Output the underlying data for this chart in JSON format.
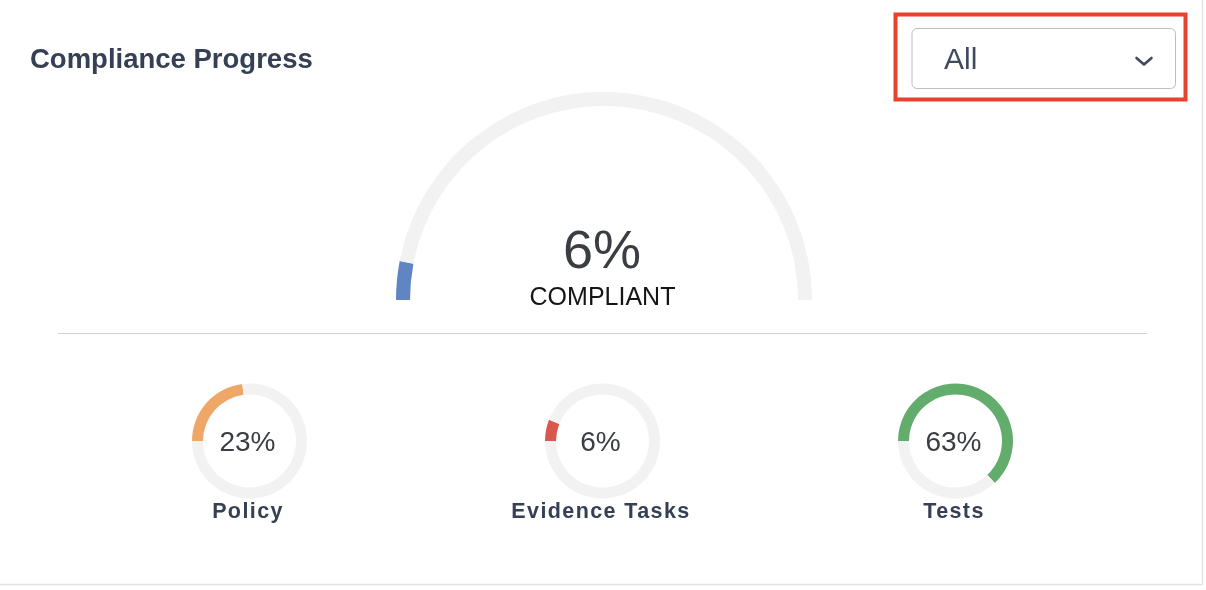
{
  "chart_data": [
    {
      "type": "other",
      "title": "Compliance Progress",
      "annotations": [
        "All"
      ]
    },
    {
      "type": "donut",
      "title": "COMPLIANT",
      "categories": [
        null,
        null
      ],
      "values": [
        6,
        94
      ],
      "colors": [
        "#5f86c2",
        "#f2f2f2"
      ],
      "annotations": [
        "6%"
      ]
    },
    {
      "type": "donut",
      "title": "Policy",
      "categories": [
        null,
        null
      ],
      "values": [
        23,
        77
      ],
      "colors": [
        "#eea766",
        "#f2f2f2"
      ],
      "value_labels": [
        "23%",
        null
      ]
    },
    {
      "type": "donut",
      "title": "Evidence Tasks",
      "categories": [
        null,
        null
      ],
      "values": [
        6,
        94
      ],
      "colors": [
        "#d9574f",
        "#f2f2f2"
      ],
      "value_labels": [
        "6%",
        null
      ]
    },
    {
      "type": "donut",
      "title": "Tests",
      "categories": [
        null,
        null
      ],
      "values": [
        63,
        37
      ],
      "colors": [
        "#63ad6c",
        "#f2f2f2"
      ],
      "value_labels": [
        "63%",
        null
      ]
    }
  ]
}
